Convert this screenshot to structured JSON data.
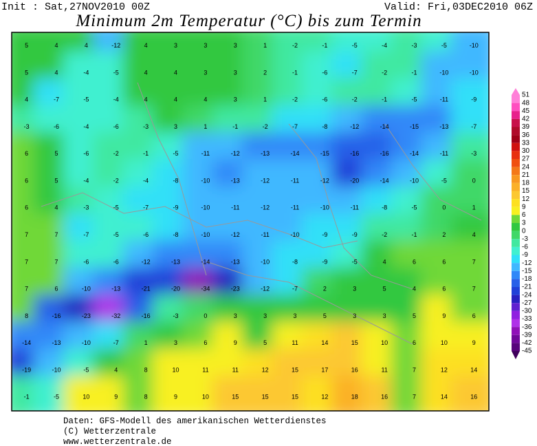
{
  "header": {
    "init": "Init : Sat,27NOV2010 00Z",
    "valid": "Valid: Fri,03DEC2010 06Z",
    "title": "Minimum 2m Temperatur (°C) bis zum Termin"
  },
  "map": {
    "values": [
      [
        5,
        4,
        4,
        -12,
        4,
        3,
        3,
        3,
        1,
        -2,
        -1,
        -5,
        -4,
        -3,
        -5,
        -10
      ],
      [
        5,
        4,
        -4,
        -5,
        4,
        4,
        3,
        3,
        2,
        -1,
        -6,
        -7,
        -2,
        -1,
        -10,
        -10
      ],
      [
        4,
        -7,
        -5,
        -4,
        4,
        4,
        4,
        3,
        1,
        -2,
        -6,
        -2,
        -1,
        -5,
        -11,
        -9
      ],
      [
        -3,
        -6,
        -4,
        -6,
        -3,
        3,
        1,
        -1,
        -2,
        -7,
        -8,
        -12,
        -14,
        -15,
        -13,
        -7
      ],
      [
        6,
        5,
        -6,
        -2,
        -1,
        -5,
        -11,
        -12,
        -13,
        -14,
        -15,
        -16,
        -16,
        -14,
        -11,
        -3
      ],
      [
        6,
        5,
        -4,
        -2,
        -4,
        -8,
        -10,
        -13,
        -12,
        -11,
        -12,
        -20,
        -14,
        -10,
        -5,
        0
      ],
      [
        6,
        4,
        -3,
        -5,
        -7,
        -9,
        -10,
        -11,
        -12,
        -11,
        -10,
        -11,
        -8,
        -5,
        0,
        1
      ],
      [
        7,
        7,
        -7,
        -5,
        -6,
        -8,
        -10,
        -12,
        -11,
        -10,
        -9,
        -9,
        -2,
        -1,
        2,
        4
      ],
      [
        7,
        7,
        -6,
        -6,
        -12,
        -13,
        -14,
        -13,
        -10,
        -8,
        -9,
        -5,
        4,
        6,
        6,
        7
      ],
      [
        7,
        6,
        -10,
        -13,
        -21,
        -20,
        -34,
        -23,
        -12,
        -7,
        2,
        3,
        5,
        4,
        6,
        7
      ],
      [
        8,
        -16,
        -23,
        -32,
        -16,
        -3,
        0,
        3,
        3,
        3,
        5,
        3,
        3,
        5,
        9,
        6
      ],
      [
        -14,
        -13,
        -10,
        -7,
        1,
        3,
        6,
        9,
        5,
        11,
        14,
        15,
        10,
        6,
        10,
        9
      ],
      [
        -19,
        -10,
        -5,
        4,
        8,
        10,
        11,
        11,
        12,
        15,
        17,
        16,
        11,
        7,
        12,
        14
      ],
      [
        -1,
        -5,
        10,
        9,
        8,
        9,
        10,
        15,
        15,
        15,
        12,
        18,
        16,
        7,
        14,
        16
      ]
    ]
  },
  "legend": [
    {
      "value": 51,
      "color": "#ff80d8"
    },
    {
      "value": 48,
      "color": "#ff4fc0"
    },
    {
      "value": 45,
      "color": "#e8208c"
    },
    {
      "value": 42,
      "color": "#c8104a"
    },
    {
      "value": 39,
      "color": "#b00a2a"
    },
    {
      "value": 36,
      "color": "#a00018"
    },
    {
      "value": 33,
      "color": "#d01010"
    },
    {
      "value": 30,
      "color": "#e83010"
    },
    {
      "value": 27,
      "color": "#f05010"
    },
    {
      "value": 24,
      "color": "#f47818"
    },
    {
      "value": 21,
      "color": "#f89820"
    },
    {
      "value": 18,
      "color": "#fbb028"
    },
    {
      "value": 15,
      "color": "#fcc830"
    },
    {
      "value": 12,
      "color": "#fde020"
    },
    {
      "value": 9,
      "color": "#f8f020"
    },
    {
      "value": 6,
      "color": "#70d838"
    },
    {
      "value": 3,
      "color": "#30c840"
    },
    {
      "value": 0,
      "color": "#40d868"
    },
    {
      "value": -3,
      "color": "#40e8a0"
    },
    {
      "value": -6,
      "color": "#40f0d0"
    },
    {
      "value": -9,
      "color": "#30e0f8"
    },
    {
      "value": -12,
      "color": "#40b8ff"
    },
    {
      "value": -15,
      "color": "#3088f8"
    },
    {
      "value": -18,
      "color": "#2860e8"
    },
    {
      "value": -21,
      "color": "#2040d8"
    },
    {
      "value": -24,
      "color": "#2820c0"
    },
    {
      "value": -27,
      "color": "#6020d0"
    },
    {
      "value": -30,
      "color": "#9020e0"
    },
    {
      "value": -33,
      "color": "#b030e8"
    },
    {
      "value": -36,
      "color": "#9010b8"
    },
    {
      "value": -39,
      "color": "#70089a"
    },
    {
      "value": -42,
      "color": "#58047c"
    },
    {
      "value": -45,
      "color": "#40005c"
    }
  ],
  "footer": {
    "lines": [
      "Daten: GFS-Modell des amerikanischen Wetterdienstes",
      "(C) Wetterzentrale",
      "www.wetterzentrale.de"
    ]
  }
}
